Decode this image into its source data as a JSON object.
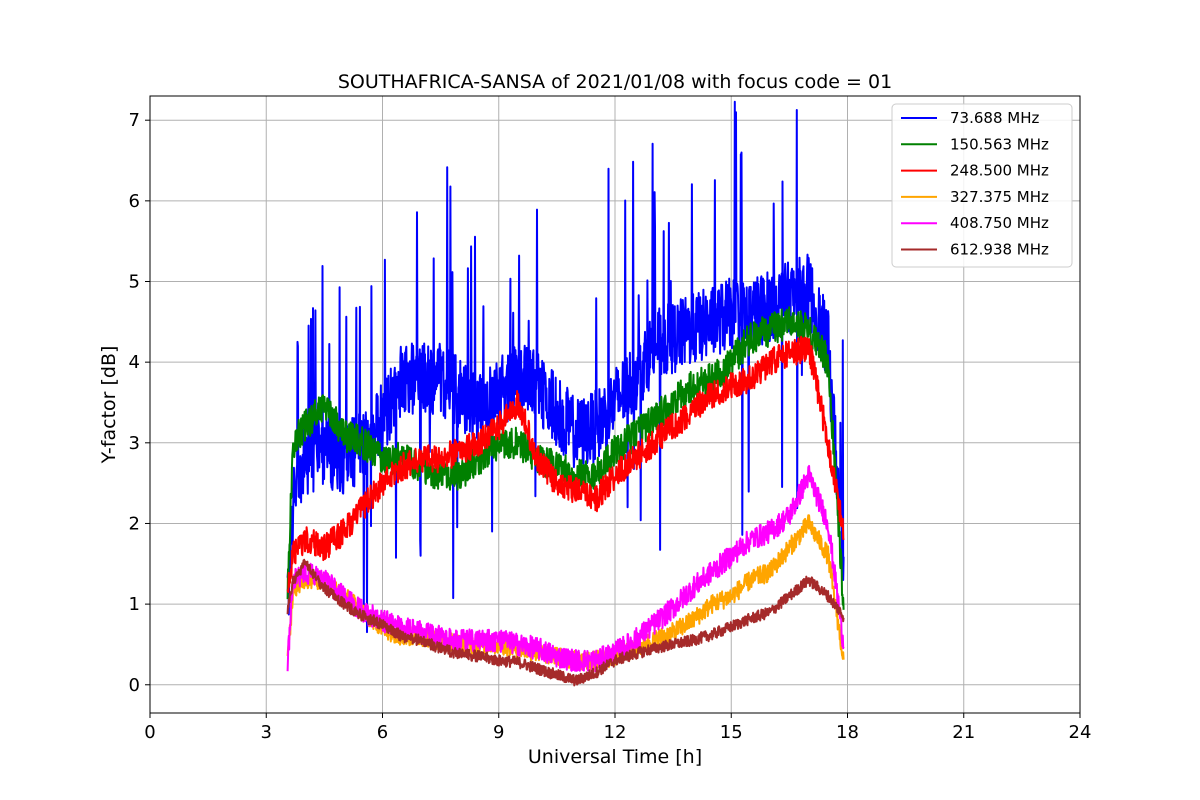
{
  "chart_data": {
    "type": "line",
    "title": "SOUTHAFRICA-SANSA of 2021/01/08 with focus code = 01",
    "xlabel": "Universal Time [h]",
    "ylabel": "Y-factor [dB]",
    "xlim": [
      0,
      24
    ],
    "ylim": [
      -0.35,
      7.3
    ],
    "xticks": [
      0,
      3,
      6,
      9,
      12,
      15,
      18,
      21,
      24
    ],
    "yticks": [
      0,
      1,
      2,
      3,
      4,
      5,
      6,
      7
    ],
    "grid": true,
    "legend_position": "top-right",
    "series": [
      {
        "name": "73.688 MHz",
        "color": "#0000ff",
        "noise": 0.45,
        "spikes": true,
        "x": [
          3.55,
          3.7,
          4.0,
          4.5,
          5.0,
          5.5,
          6.0,
          6.5,
          7.0,
          7.5,
          8.0,
          8.5,
          9.0,
          9.5,
          10.0,
          10.5,
          11.0,
          11.5,
          12.0,
          12.5,
          13.0,
          13.5,
          14.0,
          14.5,
          15.0,
          15.5,
          16.0,
          16.5,
          17.0,
          17.5,
          17.9
        ],
        "y": [
          1.0,
          2.3,
          2.8,
          2.9,
          2.8,
          3.0,
          3.3,
          3.8,
          3.8,
          3.8,
          3.6,
          3.4,
          3.6,
          3.8,
          3.7,
          3.4,
          3.1,
          3.2,
          3.5,
          3.8,
          4.2,
          4.3,
          4.4,
          4.5,
          4.6,
          4.6,
          4.7,
          4.8,
          4.9,
          4.2,
          1.5
        ]
      },
      {
        "name": "150.563 MHz",
        "color": "#008000",
        "noise": 0.2,
        "spikes": false,
        "x": [
          3.55,
          3.7,
          4.0,
          4.5,
          5.0,
          5.5,
          6.0,
          6.5,
          7.0,
          7.5,
          8.0,
          8.5,
          9.0,
          9.5,
          10.0,
          10.5,
          11.0,
          11.5,
          12.0,
          12.5,
          13.0,
          13.5,
          14.0,
          14.5,
          15.0,
          15.5,
          16.0,
          16.5,
          17.0,
          17.5,
          17.9
        ],
        "y": [
          1.2,
          3.0,
          3.2,
          3.5,
          3.1,
          3.0,
          2.8,
          2.8,
          2.7,
          2.6,
          2.6,
          2.8,
          3.0,
          3.0,
          2.8,
          2.7,
          2.6,
          2.6,
          2.9,
          3.1,
          3.3,
          3.5,
          3.7,
          3.8,
          4.0,
          4.3,
          4.4,
          4.5,
          4.4,
          4.0,
          1.0
        ]
      },
      {
        "name": "248.500 MHz",
        "color": "#ff0000",
        "noise": 0.17,
        "spikes": false,
        "x": [
          3.55,
          3.7,
          4.0,
          4.5,
          5.0,
          5.5,
          6.0,
          6.5,
          7.0,
          7.5,
          8.0,
          8.5,
          9.0,
          9.5,
          10.0,
          10.5,
          11.0,
          11.5,
          12.0,
          12.5,
          13.0,
          13.5,
          14.0,
          14.5,
          15.0,
          15.5,
          16.0,
          16.5,
          17.0,
          17.5,
          17.9
        ],
        "y": [
          1.2,
          1.6,
          1.8,
          1.7,
          1.9,
          2.2,
          2.5,
          2.7,
          2.8,
          2.8,
          2.9,
          3.0,
          3.2,
          3.5,
          2.8,
          2.5,
          2.4,
          2.3,
          2.6,
          2.8,
          3.0,
          3.2,
          3.4,
          3.6,
          3.7,
          3.8,
          4.0,
          4.1,
          4.2,
          3.0,
          1.9
        ]
      },
      {
        "name": "327.375 MHz",
        "color": "#ffa500",
        "noise": 0.12,
        "spikes": false,
        "x": [
          3.55,
          3.7,
          4.0,
          4.5,
          5.0,
          5.5,
          6.0,
          6.5,
          7.0,
          7.5,
          8.0,
          8.5,
          9.0,
          9.5,
          10.0,
          10.5,
          11.0,
          11.5,
          12.0,
          12.5,
          13.0,
          13.5,
          14.0,
          14.5,
          15.0,
          15.5,
          16.0,
          16.5,
          17.0,
          17.5,
          17.9
        ],
        "y": [
          0.3,
          1.2,
          1.3,
          1.3,
          1.1,
          0.9,
          0.7,
          0.6,
          0.6,
          0.55,
          0.5,
          0.5,
          0.5,
          0.45,
          0.4,
          0.35,
          0.3,
          0.3,
          0.35,
          0.45,
          0.55,
          0.65,
          0.8,
          1.0,
          1.1,
          1.3,
          1.4,
          1.7,
          2.0,
          1.6,
          0.3
        ]
      },
      {
        "name": "408.750 MHz",
        "color": "#ff00ff",
        "noise": 0.14,
        "spikes": false,
        "x": [
          3.55,
          3.7,
          4.0,
          4.5,
          5.0,
          5.5,
          6.0,
          6.5,
          7.0,
          7.5,
          8.0,
          8.5,
          9.0,
          9.5,
          10.0,
          10.5,
          11.0,
          11.5,
          12.0,
          12.5,
          13.0,
          13.5,
          14.0,
          14.5,
          15.0,
          15.5,
          16.0,
          16.5,
          17.0,
          17.5,
          17.9
        ],
        "y": [
          0.3,
          1.3,
          1.4,
          1.3,
          1.1,
          0.9,
          0.8,
          0.7,
          0.65,
          0.6,
          0.55,
          0.55,
          0.55,
          0.5,
          0.45,
          0.35,
          0.3,
          0.3,
          0.4,
          0.55,
          0.75,
          0.95,
          1.2,
          1.4,
          1.6,
          1.8,
          1.9,
          2.1,
          2.6,
          2.0,
          0.5
        ]
      },
      {
        "name": "612.938 MHz",
        "color": "#a52a2a",
        "noise": 0.07,
        "spikes": false,
        "x": [
          3.55,
          3.7,
          4.0,
          4.5,
          5.0,
          5.5,
          6.0,
          6.5,
          7.0,
          7.5,
          8.0,
          8.5,
          9.0,
          9.5,
          10.0,
          10.5,
          11.0,
          11.5,
          12.0,
          12.5,
          13.0,
          13.5,
          14.0,
          14.5,
          15.0,
          15.5,
          16.0,
          16.5,
          17.0,
          17.5,
          17.9
        ],
        "y": [
          0.9,
          1.3,
          1.5,
          1.2,
          1.0,
          0.85,
          0.75,
          0.6,
          0.55,
          0.45,
          0.38,
          0.35,
          0.3,
          0.28,
          0.2,
          0.12,
          0.05,
          0.15,
          0.3,
          0.38,
          0.45,
          0.5,
          0.55,
          0.62,
          0.72,
          0.82,
          0.9,
          1.1,
          1.3,
          1.1,
          0.85
        ]
      }
    ]
  }
}
